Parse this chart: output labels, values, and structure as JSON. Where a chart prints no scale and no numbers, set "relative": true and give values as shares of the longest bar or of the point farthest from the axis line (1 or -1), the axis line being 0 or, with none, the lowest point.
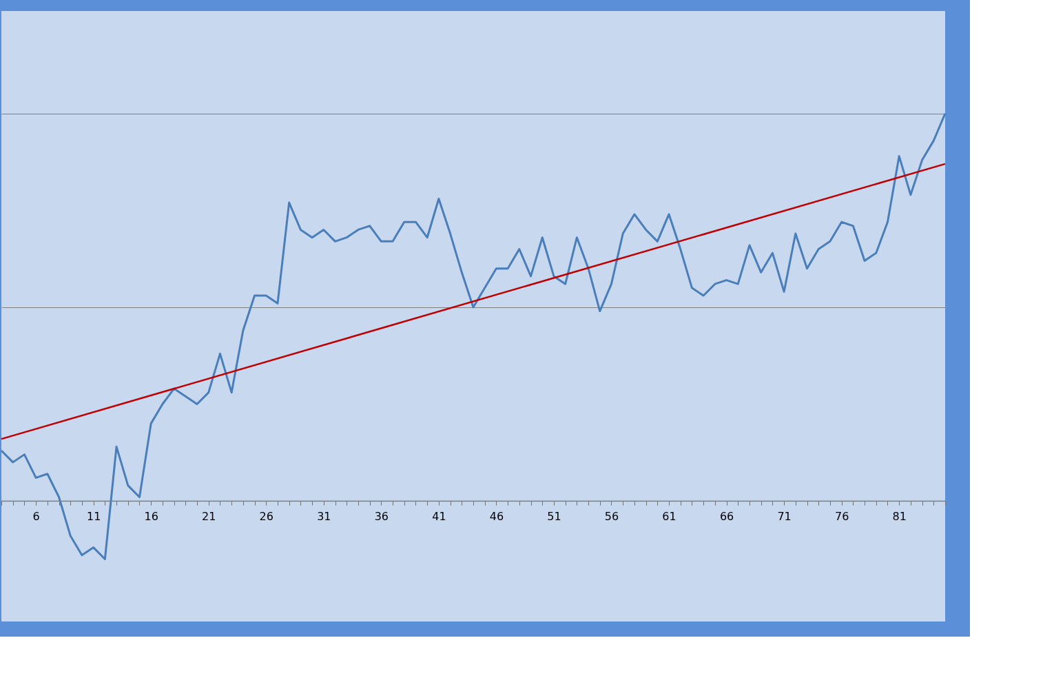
{
  "chart_data": {
    "type": "line",
    "relative": true,
    "grid": "y",
    "legend": false,
    "xlim": [
      3,
      85
    ],
    "xticks": [
      {
        "value": 3,
        "label": null
      },
      {
        "value": 4,
        "label": null
      },
      {
        "value": 5,
        "label": null
      },
      6,
      {
        "value": 7,
        "label": null
      },
      {
        "value": 8,
        "label": null
      },
      {
        "value": 9,
        "label": null
      },
      {
        "value": 10,
        "label": null
      },
      11,
      {
        "value": 12,
        "label": null
      },
      {
        "value": 13,
        "label": null
      },
      {
        "value": 14,
        "label": null
      },
      {
        "value": 15,
        "label": null
      },
      16,
      {
        "value": 17,
        "label": null
      },
      {
        "value": 18,
        "label": null
      },
      {
        "value": 19,
        "label": null
      },
      {
        "value": 20,
        "label": null
      },
      21,
      {
        "value": 22,
        "label": null
      },
      {
        "value": 23,
        "label": null
      },
      {
        "value": 24,
        "label": null
      },
      {
        "value": 25,
        "label": null
      },
      26,
      {
        "value": 27,
        "label": null
      },
      {
        "value": 28,
        "label": null
      },
      {
        "value": 29,
        "label": null
      },
      {
        "value": 30,
        "label": null
      },
      31,
      {
        "value": 32,
        "label": null
      },
      {
        "value": 33,
        "label": null
      },
      {
        "value": 34,
        "label": null
      },
      {
        "value": 35,
        "label": null
      },
      36,
      {
        "value": 37,
        "label": null
      },
      {
        "value": 38,
        "label": null
      },
      {
        "value": 39,
        "label": null
      },
      {
        "value": 40,
        "label": null
      },
      41,
      {
        "value": 42,
        "label": null
      },
      {
        "value": 43,
        "label": null
      },
      {
        "value": 44,
        "label": null
      },
      {
        "value": 45,
        "label": null
      },
      46,
      {
        "value": 47,
        "label": null
      },
      {
        "value": 48,
        "label": null
      },
      {
        "value": 49,
        "label": null
      },
      {
        "value": 50,
        "label": null
      },
      51,
      {
        "value": 52,
        "label": null
      },
      {
        "value": 53,
        "label": null
      },
      {
        "value": 54,
        "label": null
      },
      {
        "value": 55,
        "label": null
      },
      56,
      {
        "value": 57,
        "label": null
      },
      {
        "value": 58,
        "label": null
      },
      {
        "value": 59,
        "label": null
      },
      {
        "value": 60,
        "label": null
      },
      61,
      {
        "value": 62,
        "label": null
      },
      {
        "value": 63,
        "label": null
      },
      {
        "value": 64,
        "label": null
      },
      {
        "value": 65,
        "label": null
      },
      66,
      {
        "value": 67,
        "label": null
      },
      {
        "value": 68,
        "label": null
      },
      {
        "value": 69,
        "label": null
      },
      {
        "value": 70,
        "label": null
      },
      71,
      {
        "value": 72,
        "label": null
      },
      {
        "value": 73,
        "label": null
      },
      {
        "value": 74,
        "label": null
      },
      {
        "value": 75,
        "label": null
      },
      76,
      {
        "value": 77,
        "label": null
      },
      {
        "value": 78,
        "label": null
      },
      {
        "value": 79,
        "label": null
      },
      {
        "value": 80,
        "label": null
      },
      81,
      {
        "value": 82,
        "label": null
      },
      {
        "value": 83,
        "label": null
      },
      {
        "value": 84,
        "label": null
      },
      {
        "value": 85,
        "label": null
      }
    ],
    "x": [
      3,
      4,
      5,
      6,
      7,
      8,
      9,
      10,
      11,
      12,
      13,
      14,
      15,
      16,
      17,
      18,
      19,
      20,
      21,
      22,
      23,
      24,
      25,
      26,
      27,
      28,
      29,
      30,
      31,
      32,
      33,
      34,
      35,
      36,
      37,
      38,
      39,
      40,
      41,
      42,
      43,
      44,
      45,
      46,
      47,
      48,
      49,
      50,
      51,
      52,
      53,
      54,
      55,
      56,
      57,
      58,
      59,
      60,
      61,
      62,
      63,
      64,
      65,
      66,
      67,
      68,
      69,
      70,
      71,
      72,
      73,
      74,
      75,
      76,
      77,
      78,
      79,
      80,
      81,
      82,
      83,
      84,
      85
    ],
    "series": [
      {
        "color": "#4a7ebb",
        "values": [
          0.13,
          0.1,
          0.12,
          0.06,
          0.07,
          0.01,
          -0.09,
          -0.14,
          -0.12,
          -0.15,
          0.14,
          0.04,
          0.01,
          0.2,
          0.25,
          0.29,
          0.27,
          0.25,
          0.28,
          0.38,
          0.28,
          0.44,
          0.53,
          0.53,
          0.51,
          0.77,
          0.7,
          0.68,
          0.7,
          0.67,
          0.68,
          0.7,
          0.71,
          0.67,
          0.67,
          0.72,
          0.72,
          0.68,
          0.78,
          0.69,
          0.59,
          0.5,
          0.55,
          0.6,
          0.6,
          0.65,
          0.58,
          0.68,
          0.58,
          0.56,
          0.68,
          0.6,
          0.49,
          0.56,
          0.69,
          0.74,
          0.7,
          0.67,
          0.74,
          0.65,
          0.55,
          0.53,
          0.56,
          0.57,
          0.56,
          0.66,
          0.59,
          0.64,
          0.54,
          0.69,
          0.6,
          0.65,
          0.67,
          0.72,
          0.71,
          0.62,
          0.64,
          0.72,
          0.89,
          0.79,
          0.88,
          0.93,
          1
        ]
      },
      {
        "type": "line",
        "color": "#c00000",
        "x": [
          3,
          85
        ],
        "values": [
          0.16,
          0.87
        ]
      }
    ]
  }
}
